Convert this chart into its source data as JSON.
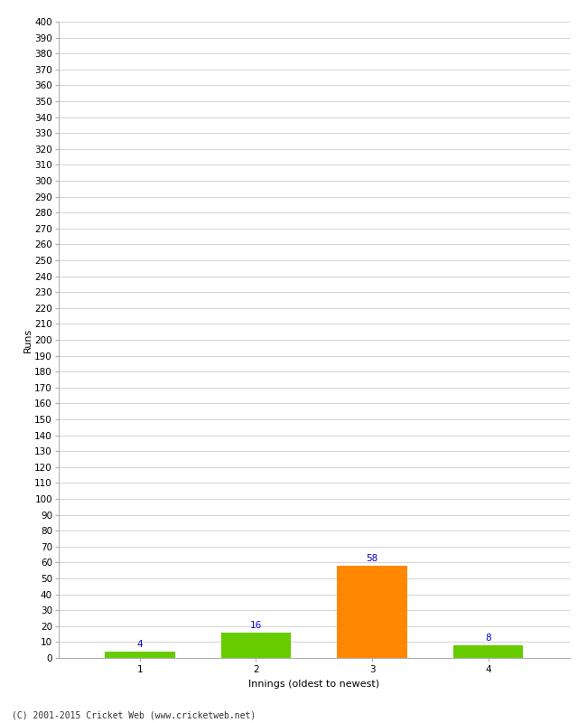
{
  "categories": [
    1,
    2,
    3,
    4
  ],
  "values": [
    4,
    16,
    58,
    8
  ],
  "bar_colors": [
    "#66cc00",
    "#66cc00",
    "#ff8800",
    "#66cc00"
  ],
  "xlabel": "Innings (oldest to newest)",
  "ylabel": "Runs",
  "ylim": [
    0,
    400
  ],
  "annotation_color": "#0000cc",
  "annotation_fontsize": 7.5,
  "axis_label_fontsize": 8,
  "tick_fontsize": 7.5,
  "footer": "(C) 2001-2015 Cricket Web (www.cricketweb.net)",
  "background_color": "#ffffff",
  "grid_color": "#cccccc",
  "bar_width": 0.6
}
